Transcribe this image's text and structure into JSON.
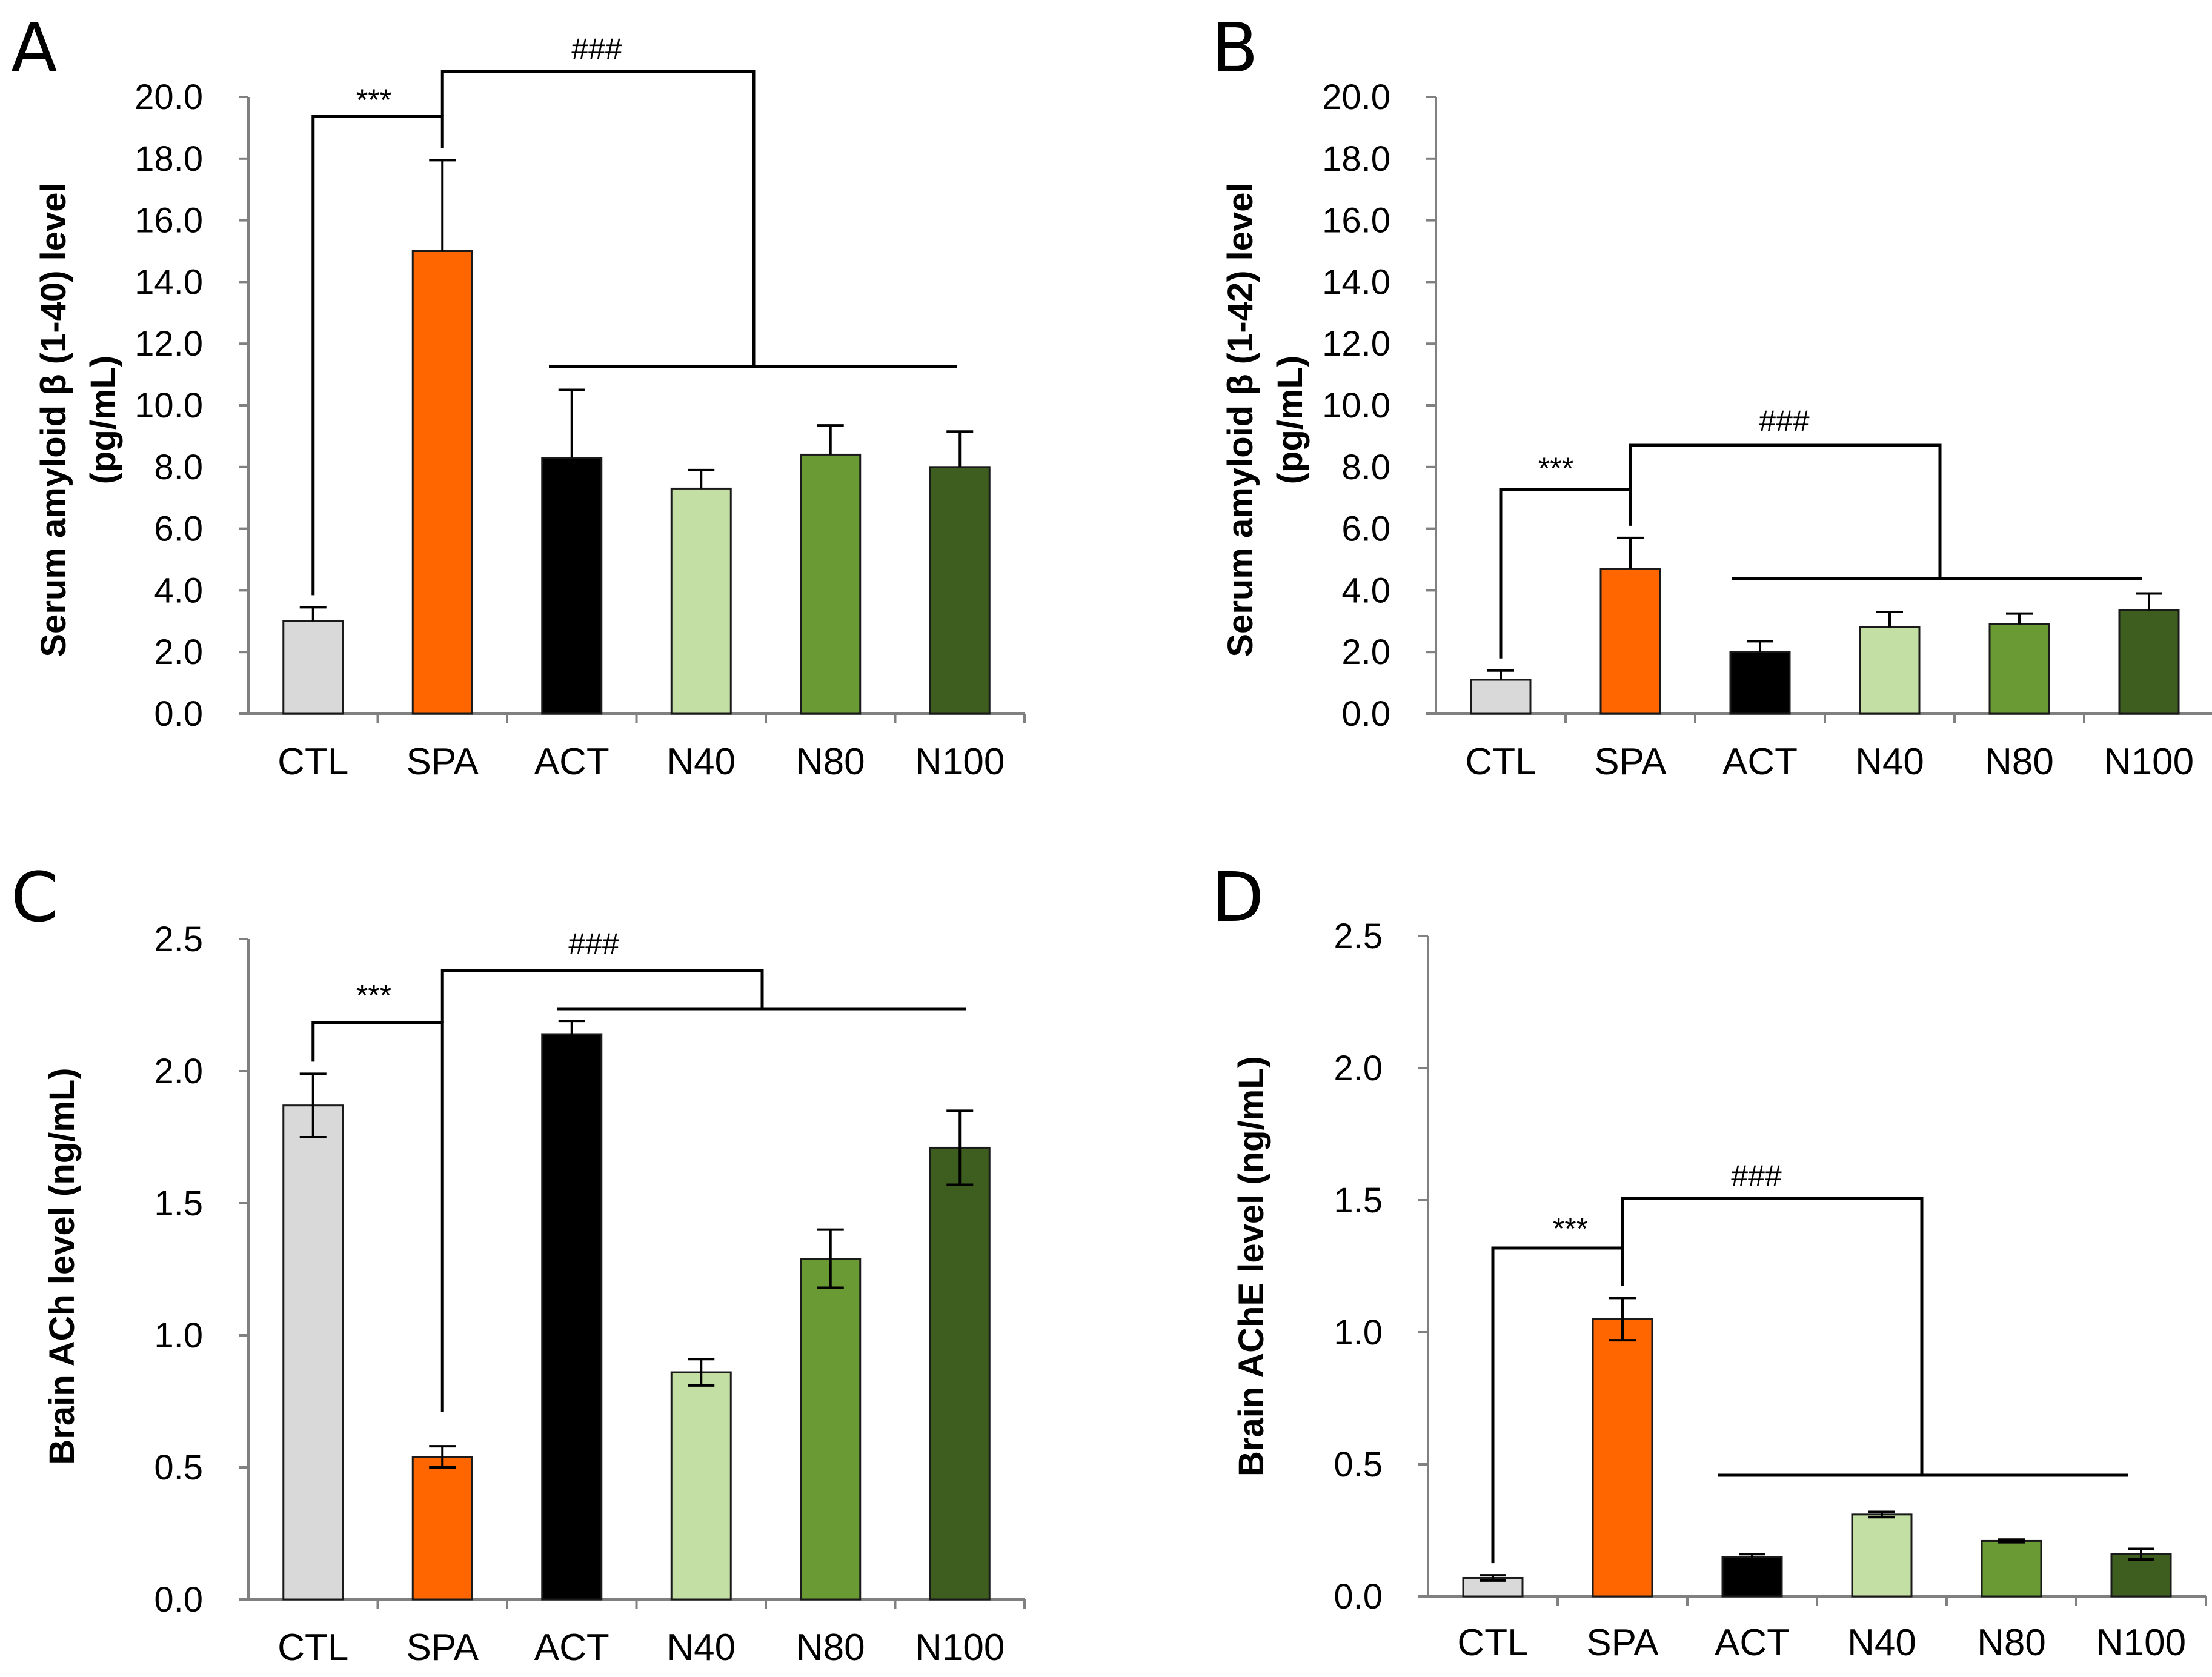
{
  "colors": {
    "CTL": "#d9d9d9",
    "SPA": "#ff6600",
    "ACT": "#000000",
    "N40": "#c4dfa3",
    "N80": "#6a9a34",
    "N100": "#3d5e1f",
    "axis": "#808080",
    "edge": "#1a1a1a"
  },
  "chart_data": [
    {
      "id": "A",
      "panel_letter": "A",
      "type": "bar",
      "categories": [
        "CTL",
        "SPA",
        "ACT",
        "N40",
        "N80",
        "N100"
      ],
      "values": [
        3.0,
        15.0,
        8.3,
        7.3,
        8.4,
        8.0
      ],
      "errors": [
        0.45,
        2.95,
        2.2,
        0.6,
        0.95,
        1.15
      ],
      "ylabel_lines": [
        "Serum amyloid β (1-40)  level",
        "(pg/mL)"
      ],
      "ylim": [
        0,
        20
      ],
      "yticks": [
        "0.0",
        "2.0",
        "4.0",
        "6.0",
        "8.0",
        "10.0",
        "12.0",
        "14.0",
        "16.0",
        "18.0",
        "20.0"
      ],
      "sig1_label": "***",
      "sig2_label": "###"
    },
    {
      "id": "B",
      "panel_letter": "B",
      "type": "bar",
      "categories": [
        "CTL",
        "SPA",
        "ACT",
        "N40",
        "N80",
        "N100"
      ],
      "values": [
        1.1,
        4.7,
        2.0,
        2.8,
        2.9,
        3.35
      ],
      "errors": [
        0.3,
        1.0,
        0.35,
        0.5,
        0.35,
        0.55
      ],
      "ylabel_lines": [
        "Serum amyloid β (1-42) level",
        "(pg/mL)"
      ],
      "ylim": [
        0,
        20
      ],
      "yticks": [
        "0.0",
        "2.0",
        "4.0",
        "6.0",
        "8.0",
        "10.0",
        "12.0",
        "14.0",
        "16.0",
        "18.0",
        "20.0"
      ],
      "sig1_label": "***",
      "sig2_label": "###"
    },
    {
      "id": "C",
      "panel_letter": "C",
      "type": "bar",
      "categories": [
        "CTL",
        "SPA",
        "ACT",
        "N40",
        "N80",
        "N100"
      ],
      "values": [
        1.87,
        0.54,
        2.14,
        0.86,
        1.29,
        1.71
      ],
      "errors": [
        0.12,
        0.04,
        0.05,
        0.05,
        0.11,
        0.14
      ],
      "ylabel_lines": [
        "Brain ACh level (ng/mL)"
      ],
      "ylim": [
        0,
        2.5
      ],
      "yticks": [
        "0.0",
        "0.5",
        "1.0",
        "1.5",
        "2.0",
        "2.5"
      ],
      "sig1_label": "***",
      "sig2_label": "###"
    },
    {
      "id": "D",
      "panel_letter": "D",
      "type": "bar",
      "categories": [
        "CTL",
        "SPA",
        "ACT",
        "N40",
        "N80",
        "N100"
      ],
      "values": [
        0.07,
        1.05,
        0.15,
        0.31,
        0.21,
        0.16
      ],
      "errors": [
        0.01,
        0.08,
        0.01,
        0.01,
        0.005,
        0.02
      ],
      "ylabel_lines": [
        "Brain AChE  level (ng/mL)"
      ],
      "ylim": [
        0,
        2.5
      ],
      "yticks": [
        "0.0",
        "0.5",
        "1.0",
        "1.5",
        "2.0",
        "2.5"
      ],
      "sig1_label": "***",
      "sig2_label": "###"
    }
  ]
}
